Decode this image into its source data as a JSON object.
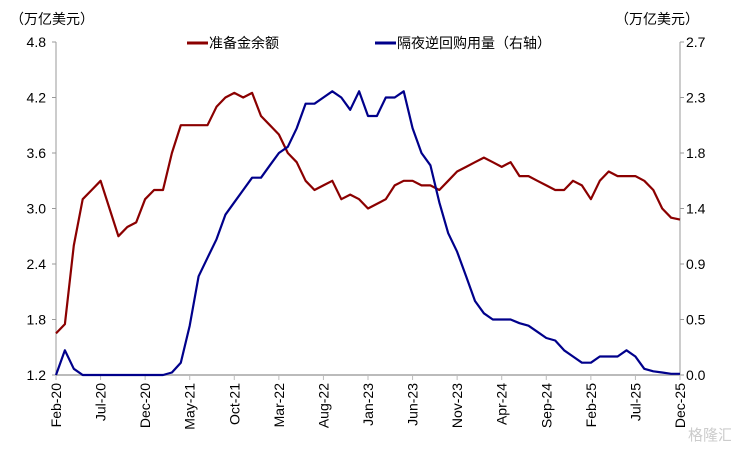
{
  "chart_data": {
    "type": "line",
    "left_unit": "（万亿美元）",
    "right_unit": "（万亿美元）",
    "ylim_left": [
      1.2,
      4.8
    ],
    "ylim_right": [
      0.0,
      2.7
    ],
    "left_ticks": [
      "1.2",
      "1.8",
      "2.4",
      "3.0",
      "3.6",
      "4.2",
      "4.8"
    ],
    "right_ticks": [
      "0.0",
      "0.5",
      "0.9",
      "1.4",
      "1.8",
      "2.3",
      "2.7"
    ],
    "x_ticks": [
      "Feb-20",
      "Jul-20",
      "Dec-20",
      "May-21",
      "Oct-21",
      "Mar-22",
      "Aug-22",
      "Jan-23",
      "Jun-23",
      "Nov-23",
      "Apr-24",
      "Sep-24",
      "Feb-25",
      "Jul-25",
      "Dec-25"
    ],
    "x_start": "Feb-20",
    "series": [
      {
        "name": "准备金余额",
        "axis": "left",
        "color": "#8B0000",
        "values": [
          1.65,
          1.75,
          2.6,
          3.1,
          3.2,
          3.3,
          3.0,
          2.7,
          2.8,
          2.85,
          3.1,
          3.2,
          3.2,
          3.6,
          3.9,
          3.9,
          3.9,
          3.9,
          4.1,
          4.2,
          4.25,
          4.2,
          4.25,
          4.0,
          3.9,
          3.8,
          3.6,
          3.5,
          3.3,
          3.2,
          3.25,
          3.3,
          3.1,
          3.15,
          3.1,
          3.0,
          3.05,
          3.1,
          3.25,
          3.3,
          3.3,
          3.25,
          3.25,
          3.2,
          3.3,
          3.4,
          3.45,
          3.5,
          3.55,
          3.5,
          3.45,
          3.5,
          3.35,
          3.35,
          3.3,
          3.25,
          3.2,
          3.2,
          3.3,
          3.25,
          3.1,
          3.3,
          3.4,
          3.35,
          3.35,
          3.35,
          3.3,
          3.2,
          3.0,
          2.9,
          2.88
        ]
      },
      {
        "name": "隔夜逆回购用量（右轴）",
        "axis": "right",
        "color": "#00008B",
        "values": [
          0,
          0.2,
          0.05,
          0,
          0,
          0,
          0,
          0,
          0,
          0,
          0,
          0,
          0,
          0.02,
          0.1,
          0.4,
          0.8,
          0.95,
          1.1,
          1.3,
          1.4,
          1.5,
          1.6,
          1.6,
          1.7,
          1.8,
          1.85,
          2.0,
          2.2,
          2.2,
          2.25,
          2.3,
          2.25,
          2.15,
          2.3,
          2.1,
          2.1,
          2.25,
          2.25,
          2.3,
          2.0,
          1.8,
          1.7,
          1.4,
          1.15,
          1.0,
          0.8,
          0.6,
          0.5,
          0.45,
          0.45,
          0.45,
          0.42,
          0.4,
          0.35,
          0.3,
          0.28,
          0.2,
          0.15,
          0.1,
          0.1,
          0.15,
          0.15,
          0.15,
          0.2,
          0.15,
          0.05,
          0.03,
          0.02,
          0.01,
          0.01
        ]
      }
    ]
  },
  "watermark": "格隆汇"
}
